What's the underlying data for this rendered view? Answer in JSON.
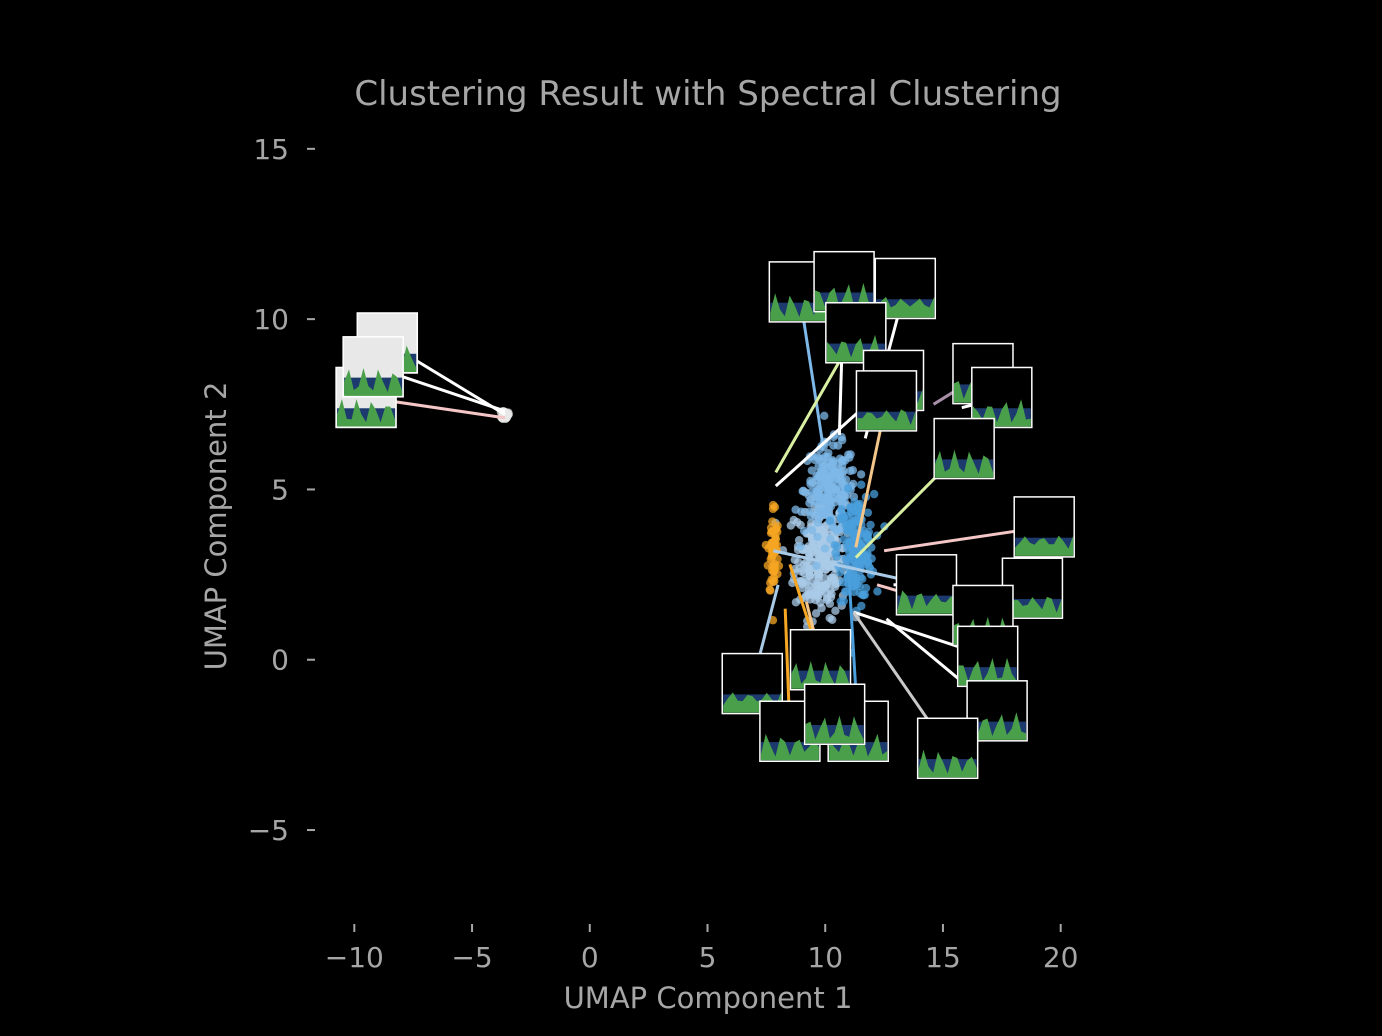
{
  "chart_data": {
    "type": "scatter",
    "title": "Clustering Result with Spectral Clustering",
    "xlabel": "UMAP Component 1",
    "ylabel": "UMAP Component 2",
    "xlim": [
      -11.5,
      21.5
    ],
    "ylim": [
      -7.7,
      15.7
    ],
    "xticks": [
      -10,
      -5,
      0,
      5,
      10,
      15,
      20
    ],
    "yticks": [
      -5,
      0,
      5,
      10,
      15
    ],
    "grid": false,
    "legend": "none",
    "colors": {
      "background": "#000000",
      "text": "#a6a6a6",
      "cluster_light": "#a9cbe8",
      "cluster_mid": "#7db8e8",
      "cluster_dark": "#4a9fdc",
      "cluster_orange": "#f5a623",
      "cluster_white": "#e8e8e8",
      "thumb_sky": "#000000",
      "thumb_water": "#1c3a6e",
      "thumb_land": "#4aa04a"
    },
    "clusters": [
      {
        "color_key": "cluster_light",
        "center": [
          9.8,
          3.0
        ],
        "spread": [
          1.0,
          1.6
        ],
        "count": 260
      },
      {
        "color_key": "cluster_mid",
        "center": [
          10.2,
          5.0
        ],
        "spread": [
          1.0,
          1.2
        ],
        "count": 200
      },
      {
        "color_key": "cluster_dark",
        "center": [
          11.3,
          3.3
        ],
        "spread": [
          0.7,
          1.4
        ],
        "count": 180
      },
      {
        "color_key": "cluster_orange",
        "center": [
          7.8,
          3.2
        ],
        "spread": [
          0.2,
          1.3
        ],
        "count": 60
      },
      {
        "color_key": "cluster_white",
        "center": [
          -3.6,
          7.2
        ],
        "spread": [
          0.12,
          0.12
        ],
        "count": 40
      }
    ],
    "thumbnails": [
      {
        "at": [
          -9.5,
          7.7
        ],
        "point": [
          -3.6,
          7.1
        ],
        "line_color": "#f4c6c6",
        "style": "white"
      },
      {
        "at": [
          -8.6,
          9.3
        ],
        "point": [
          -3.6,
          7.2
        ],
        "line_color": "#ffffff",
        "style": "white"
      },
      {
        "at": [
          -9.2,
          8.6
        ],
        "point": [
          -3.6,
          7.3
        ],
        "line_color": "#ffffff",
        "style": "white"
      },
      {
        "at": [
          8.9,
          10.8
        ],
        "point": [
          9.9,
          6.3
        ],
        "line_color": "#7db8e8",
        "style": "normal"
      },
      {
        "at": [
          10.8,
          11.1
        ],
        "point": [
          10.6,
          6.6
        ],
        "line_color": "#ffffff",
        "style": "normal"
      },
      {
        "at": [
          13.4,
          10.9
        ],
        "point": [
          11.7,
          6.5
        ],
        "line_color": "#ffffff",
        "style": "normal"
      },
      {
        "at": [
          11.3,
          9.6
        ],
        "point": [
          7.9,
          5.5
        ],
        "line_color": "#d9f0a3",
        "style": "normal"
      },
      {
        "at": [
          12.9,
          8.2
        ],
        "point": [
          7.9,
          5.1
        ],
        "line_color": "#ffffff",
        "style": "normal"
      },
      {
        "at": [
          12.6,
          7.6
        ],
        "point": [
          11.3,
          3.3
        ],
        "line_color": "#f4c68a",
        "style": "normal"
      },
      {
        "at": [
          16.7,
          8.4
        ],
        "point": [
          14.6,
          7.5
        ],
        "line_color": "#a78fa8",
        "style": "normal"
      },
      {
        "at": [
          17.5,
          7.7
        ],
        "point": [
          15.8,
          7.4
        ],
        "line_color": "#ffffff",
        "style": "normal"
      },
      {
        "at": [
          15.9,
          6.2
        ],
        "point": [
          11.3,
          3.0
        ],
        "line_color": "#d9f0a3",
        "style": "normal"
      },
      {
        "at": [
          19.3,
          3.9
        ],
        "point": [
          12.5,
          3.2
        ],
        "line_color": "#f4c6c6",
        "style": "normal"
      },
      {
        "at": [
          18.8,
          2.1
        ],
        "point": [
          12.9,
          2.2
        ],
        "line_color": "#ffffff",
        "style": "normal"
      },
      {
        "at": [
          14.3,
          2.2
        ],
        "point": [
          7.8,
          3.2
        ],
        "line_color": "#a9cbe8",
        "style": "normal"
      },
      {
        "at": [
          16.7,
          1.3
        ],
        "point": [
          12.2,
          2.2
        ],
        "line_color": "#f4c6c6",
        "style": "normal"
      },
      {
        "at": [
          16.9,
          0.1
        ],
        "point": [
          11.2,
          1.4
        ],
        "line_color": "#ffffff",
        "style": "normal"
      },
      {
        "at": [
          17.3,
          -1.5
        ],
        "point": [
          12.6,
          1.2
        ],
        "line_color": "#ffffff",
        "style": "normal"
      },
      {
        "at": [
          15.2,
          -2.6
        ],
        "point": [
          11.2,
          1.4
        ],
        "line_color": "#c9c9c9",
        "style": "normal"
      },
      {
        "at": [
          9.8,
          0.0
        ],
        "point": [
          8.5,
          2.8
        ],
        "line_color": "#f5a623",
        "style": "normal"
      },
      {
        "at": [
          6.9,
          -0.7
        ],
        "point": [
          8.0,
          2.2
        ],
        "line_color": "#a9cbe8",
        "style": "normal"
      },
      {
        "at": [
          8.5,
          -2.1
        ],
        "point": [
          8.3,
          1.5
        ],
        "line_color": "#f5a623",
        "style": "normal"
      },
      {
        "at": [
          11.4,
          -2.1
        ],
        "point": [
          11.0,
          2.6
        ],
        "line_color": "#4a9fdc",
        "style": "normal"
      },
      {
        "at": [
          10.4,
          -1.6
        ],
        "point": [
          9.2,
          1.7
        ],
        "line_color": "#f4c68a",
        "style": "normal"
      }
    ]
  }
}
